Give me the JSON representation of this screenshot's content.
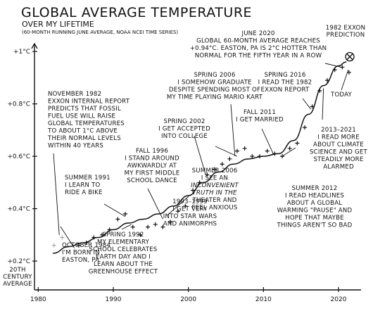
{
  "chart_data": {
    "type": "scatter",
    "title": "GLOBAL AVERAGE TEMPERATURE",
    "subtitle": "OVER MY LIFETIME",
    "subsubtitle": "(60-MONTH RUNNING JUNE AVERAGE, NOAA NCEI TIME SERIES)",
    "xlabel": "",
    "ylabel": "",
    "xlim": [
      1979.5,
      2023
    ],
    "ylim": [
      0.09,
      1.03
    ],
    "grid": false,
    "x_ticks": [
      {
        "value": 1980,
        "label": "1980"
      },
      {
        "value": 1990,
        "label": "1990"
      },
      {
        "value": 2000,
        "label": "2000"
      },
      {
        "value": 2010,
        "label": "2010"
      },
      {
        "value": 2020,
        "label": "2020"
      }
    ],
    "y_ticks": [
      {
        "value": 0.2,
        "label": "+0.2°C"
      },
      {
        "value": 0.4,
        "label": "+0.4°C"
      },
      {
        "value": 0.6,
        "label": "+0.6°C"
      },
      {
        "value": 0.8,
        "label": "+0.8°C"
      },
      {
        "value": 1.0,
        "label": "+1°C"
      }
    ],
    "baseline_label": [
      "20TH",
      "CENTURY",
      "AVERAGE"
    ],
    "series": [
      {
        "name": "",
        "color": "#a8a8a8",
        "points": [
          {
            "x": 1982.1,
            "y": 0.26
          },
          {
            "x": 1983.2,
            "y": 0.29
          }
        ]
      },
      {
        "name": "",
        "color": "#111111",
        "points": [
          {
            "x": 1985.4,
            "y": 0.26
          },
          {
            "x": 1986.4,
            "y": 0.27
          },
          {
            "x": 1987.4,
            "y": 0.29
          },
          {
            "x": 1988.5,
            "y": 0.3
          },
          {
            "x": 1989.5,
            "y": 0.32
          },
          {
            "x": 1990.6,
            "y": 0.36
          },
          {
            "x": 1991.6,
            "y": 0.38
          },
          {
            "x": 1992.6,
            "y": 0.33
          },
          {
            "x": 1993.6,
            "y": 0.3
          },
          {
            "x": 1994.6,
            "y": 0.33
          },
          {
            "x": 1995.6,
            "y": 0.34
          },
          {
            "x": 1996.6,
            "y": 0.33
          },
          {
            "x": 1997.6,
            "y": 0.35
          },
          {
            "x": 1998.6,
            "y": 0.39
          },
          {
            "x": 1999.6,
            "y": 0.41
          },
          {
            "x": 2000.6,
            "y": 0.47
          },
          {
            "x": 2001.5,
            "y": 0.5
          },
          {
            "x": 2002.5,
            "y": 0.53
          },
          {
            "x": 2003.5,
            "y": 0.55
          },
          {
            "x": 2004.5,
            "y": 0.57
          },
          {
            "x": 2005.5,
            "y": 0.59
          },
          {
            "x": 2006.5,
            "y": 0.62
          },
          {
            "x": 2007.5,
            "y": 0.63
          },
          {
            "x": 2008.5,
            "y": 0.6
          },
          {
            "x": 2009.5,
            "y": 0.6
          },
          {
            "x": 2010.5,
            "y": 0.62
          },
          {
            "x": 2011.5,
            "y": 0.61
          },
          {
            "x": 2012.5,
            "y": 0.6
          },
          {
            "x": 2013.5,
            "y": 0.63
          },
          {
            "x": 2014.5,
            "y": 0.65
          },
          {
            "x": 2015.5,
            "y": 0.71
          },
          {
            "x": 2016.5,
            "y": 0.79
          },
          {
            "x": 2017.5,
            "y": 0.85
          },
          {
            "x": 2018.5,
            "y": 0.89
          },
          {
            "x": 2019.5,
            "y": 0.93
          },
          {
            "x": 2020.5,
            "y": 0.94
          },
          {
            "x": 2021.4,
            "y": 0.92
          }
        ]
      }
    ],
    "trend": {
      "color": "#111111",
      "points": [
        {
          "x": 1982,
          "y": 0.23
        },
        {
          "x": 1984,
          "y": 0.255
        },
        {
          "x": 1986,
          "y": 0.27
        },
        {
          "x": 1988,
          "y": 0.29
        },
        {
          "x": 1990,
          "y": 0.32
        },
        {
          "x": 1992,
          "y": 0.345
        },
        {
          "x": 1994,
          "y": 0.36
        },
        {
          "x": 1996,
          "y": 0.38
        },
        {
          "x": 1998,
          "y": 0.41
        },
        {
          "x": 2000,
          "y": 0.45
        },
        {
          "x": 2002,
          "y": 0.5
        },
        {
          "x": 2004,
          "y": 0.54
        },
        {
          "x": 2006,
          "y": 0.57
        },
        {
          "x": 2008,
          "y": 0.59
        },
        {
          "x": 2010,
          "y": 0.6
        },
        {
          "x": 2012,
          "y": 0.61
        },
        {
          "x": 2014,
          "y": 0.66
        },
        {
          "x": 2016,
          "y": 0.76
        },
        {
          "x": 2018,
          "y": 0.87
        },
        {
          "x": 2020,
          "y": 0.945
        },
        {
          "x": 2021,
          "y": 0.96
        }
      ]
    },
    "prediction": {
      "x": 2021.5,
      "y": 0.98,
      "symbol": "⊗",
      "label": [
        "1982 EXXON",
        "PREDICTION"
      ]
    },
    "annotations": [
      {
        "id": "born",
        "lines": [
          "OCTOBER 1984",
          "I'M BORN IN",
          "EASTON, PA"
        ],
        "points_to": {
          "x": 1984.8,
          "y": 0.25
        }
      },
      {
        "id": "exxon-1982",
        "lines": [
          "NOVEMBER 1982",
          "EXXON INTERNAL REPORT",
          "PREDICTS THAT FOSSIL",
          "FUEL USE WILL RAISE",
          "GLOBAL TEMPERATURES",
          "TO ABOUT 1°C ABOVE",
          "THEIR NORMAL LEVELS",
          "WITHIN 40 YEARS"
        ],
        "points_to": {
          "x": 1982.8,
          "y": 0.3
        }
      },
      {
        "id": "bike",
        "lines": [
          "SUMMER 1991",
          "I LEARN TO",
          "RIDE A BIKE"
        ],
        "points_to": {
          "x": 1991.6,
          "y": 0.37
        }
      },
      {
        "id": "earth-day",
        "lines": [
          "SPRING 1992",
          "MY ELEMENTARY",
          "SCHOOL CELEBRATES",
          "EARTH DAY AND I",
          "LEARN ABOUT THE",
          "GREENHOUSE EFFECT"
        ],
        "points_to": {
          "x": 1992.4,
          "y": 0.34
        }
      },
      {
        "id": "dance",
        "lines": [
          "FALL 1996",
          "I STAND AROUND",
          "AWKWARDLY AT",
          "MY FIRST MIDDLE",
          "SCHOOL DANCE"
        ],
        "points_to": {
          "x": 1996.6,
          "y": 0.36
        }
      },
      {
        "id": "star-wars",
        "lines": [
          "1993–1999",
          "I GET VERY",
          "INTO STAR WARS",
          "AND ANIMORPHS"
        ],
        "points_to": {
          "x": 1997.2,
          "y": 0.375
        }
      },
      {
        "id": "college",
        "lines": [
          "SPRING 2002",
          "I GET ACCEPTED",
          "INTO COLLEGE"
        ],
        "points_to": {
          "x": 2002.3,
          "y": 0.53
        }
      },
      {
        "id": "mario-kart",
        "lines": [
          "SPRING 2006",
          "I SOMEHOW GRADUATE",
          "DESPITE SPENDING MOST OF",
          "MY TIME PLAYING MARIO KART"
        ],
        "points_to": {
          "x": 2006.2,
          "y": 0.6
        }
      },
      {
        "id": "inconvenient-truth",
        "lines": [
          "SUMMER 2006",
          "I SEE AN",
          "INCONVENIENT",
          "TRUTH IN THE",
          "THEATER AND",
          "FEEL ANXIOUS"
        ],
        "points_to": {
          "x": 2006.5,
          "y": 0.6
        }
      },
      {
        "id": "married",
        "lines": [
          "FALL 2011",
          "I GET MARRIED"
        ],
        "points_to": {
          "x": 2011.3,
          "y": 0.61
        }
      },
      {
        "id": "read-exxon",
        "lines": [
          "SPRING 2016",
          "I READ THE 1982",
          "EXXON REPORT"
        ],
        "points_to": {
          "x": 2016.3,
          "y": 0.78
        }
      },
      {
        "id": "pause",
        "lines": [
          "SUMMER 2012",
          "I READ HEADLINES",
          "ABOUT A GLOBAL",
          "WARMING \"PAUSE\" AND",
          "HOPE THAT MAYBE",
          "THINGS AREN'T SO BAD"
        ],
        "points_to": {
          "x": 2012.5,
          "y": 0.6
        }
      },
      {
        "id": "read-more",
        "lines": [
          "2013–2021",
          "I READ MORE",
          "ABOUT CLIMATE",
          "SCIENCE AND GET",
          "STEADILY MORE",
          "ALARMED"
        ],
        "points_to": {
          "x": 2018,
          "y": 0.86
        }
      },
      {
        "id": "june-2020",
        "lines": [
          "JUNE 2020",
          "GLOBAL 60-MONTH AVERAGE REACHES",
          "+0.94°C. EASTON, PA IS 2°C HOTTER THAN",
          "NORMAL FOR THE FIFTH YEAR IN A ROW"
        ],
        "points_to": {
          "x": 2020.4,
          "y": 0.94
        }
      },
      {
        "id": "today",
        "lines": [
          "TODAY"
        ],
        "points_to": {
          "x": 2021.3,
          "y": 0.93
        }
      }
    ]
  }
}
